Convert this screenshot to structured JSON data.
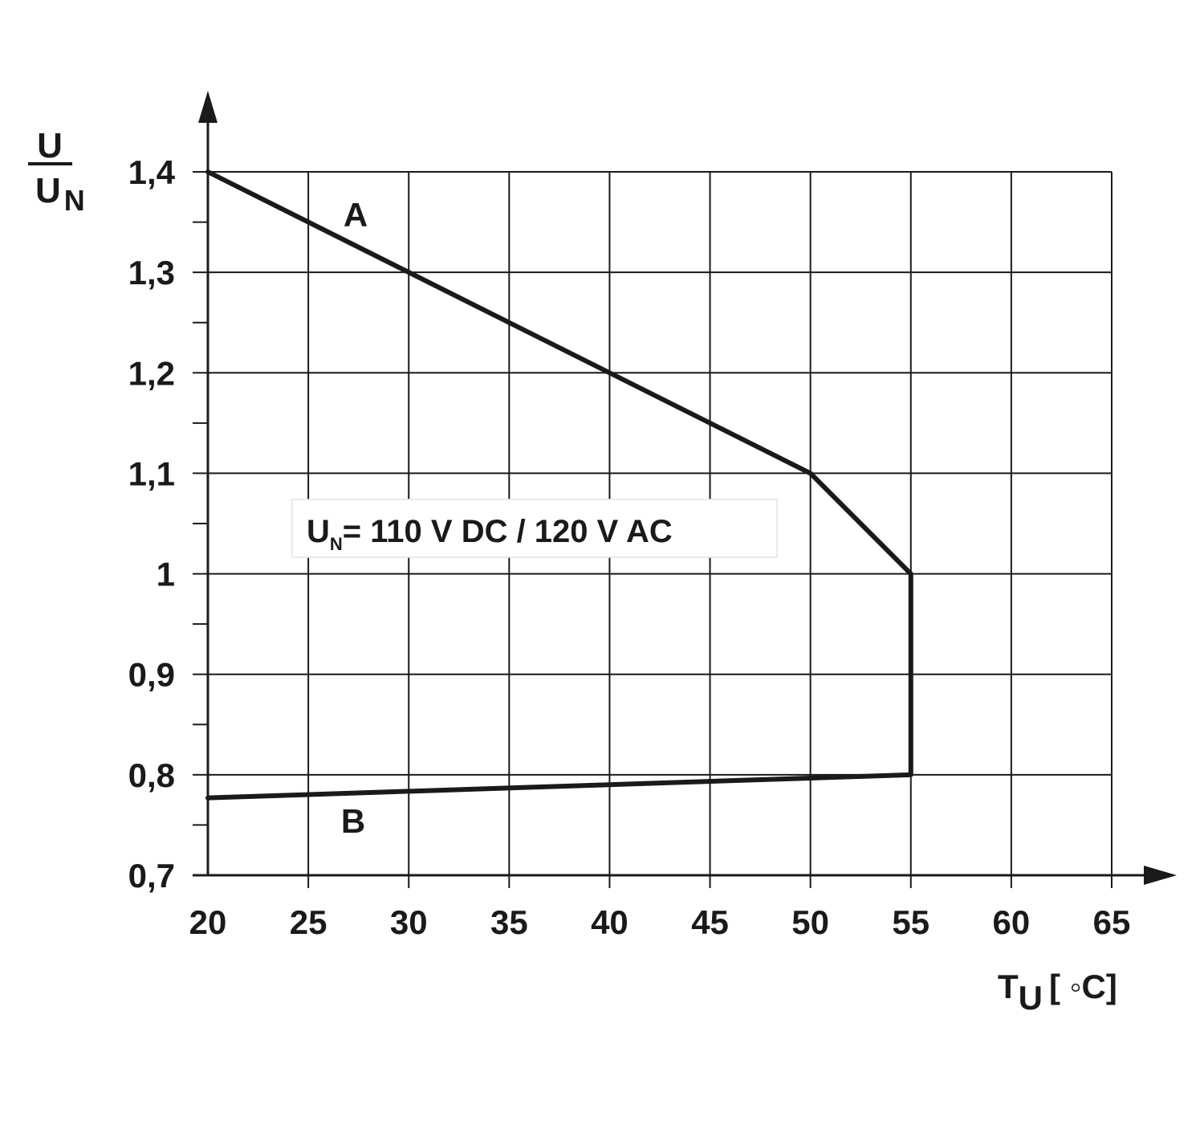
{
  "chart_data": {
    "type": "line",
    "title": "",
    "xlabel": {
      "main": "T",
      "sub": "U",
      "unit": "[ ◦C]"
    },
    "ylabel": {
      "numerator": "U",
      "denominator": "U",
      "denominator_sub": "N"
    },
    "xlim": [
      20,
      65
    ],
    "ylim": [
      0.7,
      1.4
    ],
    "x_ticks": [
      20,
      25,
      30,
      35,
      40,
      45,
      50,
      55,
      60,
      65
    ],
    "x_tick_labels": [
      "20",
      "25",
      "30",
      "35",
      "40",
      "45",
      "50",
      "55",
      "60",
      "65"
    ],
    "y_ticks": [
      0.7,
      0.8,
      0.9,
      1.0,
      1.1,
      1.2,
      1.3,
      1.4
    ],
    "y_tick_labels": [
      "0,7",
      "0,8",
      "0,9",
      "1",
      "1,1",
      "1,2",
      "1,3",
      "1,4"
    ],
    "grid": true,
    "series": [
      {
        "name": "A",
        "x": [
          20,
          50,
          55,
          55
        ],
        "y": [
          1.4,
          1.1,
          1.0,
          0.8
        ]
      },
      {
        "name": "B",
        "x": [
          20,
          55
        ],
        "y": [
          0.777,
          0.8
        ]
      }
    ],
    "annotation": {
      "main": "U",
      "sub": "N",
      "rest": "= 110 V DC / 120 V AC"
    },
    "line_color": "#1a1a1a"
  }
}
